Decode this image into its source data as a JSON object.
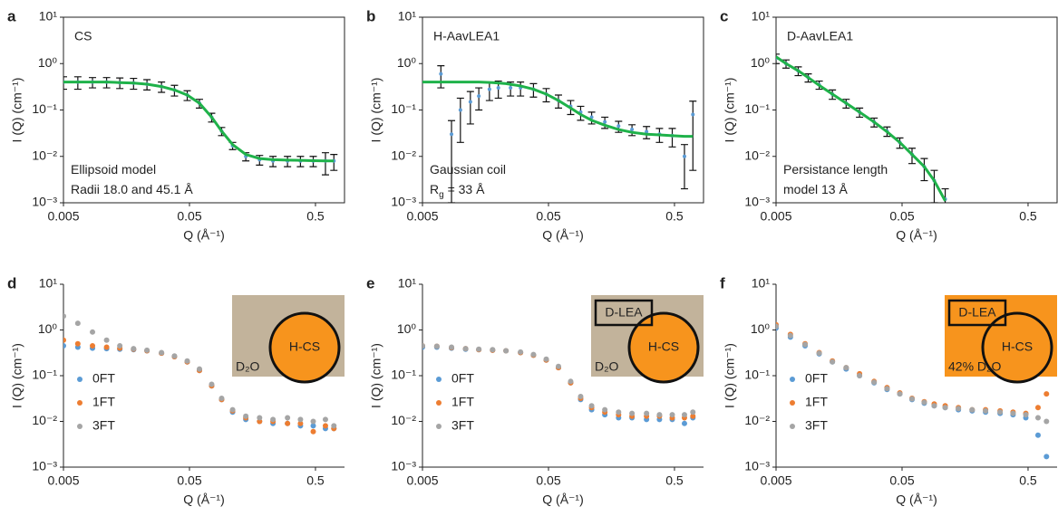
{
  "chart_data": [
    {
      "type": "scatter",
      "panel": "a",
      "title": "CS",
      "annotations": [
        {
          "text": "Ellipsoid model"
        },
        {
          "text": "Radii 18.0 and 45.1 Å"
        }
      ],
      "xlabel": "Q (Å⁻¹)",
      "ylabel": "I (Q)  (cm⁻¹)",
      "xscale": "log",
      "yscale": "log",
      "frame": true,
      "xlim": [
        0.005,
        0.85
      ],
      "ylim": [
        0.001,
        10
      ],
      "xticks": [
        0.005,
        0.05,
        0.5
      ],
      "yticks": [
        {
          "value": 0.001,
          "label": "10⁻³"
        },
        {
          "value": 0.01,
          "label": "10⁻²"
        },
        {
          "value": 0.1,
          "label": "10⁻¹"
        },
        {
          "value": 1,
          "label": "10⁰"
        },
        {
          "value": 10,
          "label": "10¹"
        }
      ],
      "x": [
        0.005,
        0.0065,
        0.0085,
        0.011,
        0.014,
        0.018,
        0.023,
        0.03,
        0.038,
        0.048,
        0.06,
        0.075,
        0.09,
        0.11,
        0.14,
        0.18,
        0.23,
        0.3,
        0.38,
        0.48,
        0.6,
        0.7
      ],
      "series": [
        {
          "style": "points",
          "color": "#5b9bd5",
          "values": [
            0.4,
            0.4,
            0.4,
            0.4,
            0.39,
            0.38,
            0.36,
            0.32,
            0.27,
            0.21,
            0.14,
            0.07,
            0.035,
            0.017,
            0.01,
            0.0085,
            0.008,
            0.008,
            0.008,
            0.008,
            0.008,
            0.008
          ],
          "errors": [
            0.12,
            0.12,
            0.1,
            0.1,
            0.1,
            0.1,
            0.09,
            0.08,
            0.07,
            0.05,
            0.03,
            0.015,
            0.007,
            0.003,
            0.002,
            0.002,
            0.002,
            0.002,
            0.002,
            0.002,
            0.004,
            0.003
          ]
        },
        {
          "style": "line",
          "color": "#1fb24a",
          "values": [
            0.4,
            0.4,
            0.4,
            0.4,
            0.39,
            0.38,
            0.36,
            0.32,
            0.27,
            0.21,
            0.14,
            0.07,
            0.035,
            0.018,
            0.011,
            0.009,
            0.0085,
            0.0083,
            0.0082,
            0.0081,
            0.008,
            0.008
          ]
        }
      ]
    },
    {
      "type": "scatter",
      "panel": "b",
      "title": "H-AavLEA1",
      "annotations": [
        {
          "text": "Gaussian coil"
        },
        {
          "text": "R",
          "sub": "g",
          "after": " = 33 Å"
        }
      ],
      "xlabel": "Q (Å⁻¹)",
      "ylabel": "I (Q)  (cm⁻¹)",
      "xscale": "log",
      "yscale": "log",
      "frame": true,
      "xlim": [
        0.005,
        0.85
      ],
      "ylim": [
        0.001,
        10
      ],
      "xticks": [
        0.005,
        0.05,
        0.5
      ],
      "yticks": [
        {
          "value": 0.001,
          "label": "10⁻³"
        },
        {
          "value": 0.01,
          "label": "10⁻²"
        },
        {
          "value": 0.1,
          "label": "10⁻¹"
        },
        {
          "value": 1,
          "label": "10⁰"
        },
        {
          "value": 10,
          "label": "10¹"
        }
      ],
      "x": [
        0.005,
        0.0065,
        0.0085,
        0.011,
        0.014,
        0.018,
        0.023,
        0.03,
        0.038,
        0.048,
        0.06,
        0.075,
        0.09,
        0.11,
        0.14,
        0.18,
        0.23,
        0.3,
        0.38,
        0.48,
        0.6,
        0.7
      ],
      "series": [
        {
          "style": "points",
          "color": "#5b9bd5",
          "x": [
            0.007,
            0.0085,
            0.01,
            0.012,
            0.014,
            0.017,
            0.02,
            0.025,
            0.03,
            0.038,
            0.048,
            0.06,
            0.075,
            0.09,
            0.11,
            0.14,
            0.18,
            0.23,
            0.3,
            0.38,
            0.48,
            0.6,
            0.7
          ],
          "values": [
            0.6,
            0.03,
            0.1,
            0.15,
            0.2,
            0.28,
            0.3,
            0.3,
            0.3,
            0.28,
            0.22,
            0.16,
            0.12,
            0.09,
            0.07,
            0.055,
            0.045,
            0.038,
            0.034,
            0.03,
            0.028,
            0.01,
            0.08
          ],
          "errors": [
            0.3,
            0.029,
            0.08,
            0.1,
            0.1,
            0.12,
            0.12,
            0.1,
            0.1,
            0.09,
            0.07,
            0.05,
            0.04,
            0.03,
            0.02,
            0.015,
            0.012,
            0.01,
            0.01,
            0.01,
            0.012,
            0.008,
            0.075
          ]
        },
        {
          "style": "line",
          "color": "#1fb24a",
          "values": [
            0.4,
            0.4,
            0.4,
            0.4,
            0.4,
            0.39,
            0.37,
            0.33,
            0.28,
            0.22,
            0.16,
            0.11,
            0.08,
            0.06,
            0.047,
            0.038,
            0.033,
            0.03,
            0.029,
            0.028,
            0.027,
            0.027
          ]
        }
      ]
    },
    {
      "type": "scatter",
      "panel": "c",
      "title": "D-AavLEA1",
      "annotations": [
        {
          "text": "Persistance length"
        },
        {
          "text": "model 13 Å"
        }
      ],
      "xlabel": "Q (Å⁻¹)",
      "ylabel": "I (Q)  (cm⁻¹)",
      "xscale": "log",
      "yscale": "log",
      "frame": true,
      "xlim": [
        0.005,
        0.85
      ],
      "ylim": [
        0.001,
        10
      ],
      "xticks": [
        0.005,
        0.05,
        0.5
      ],
      "yticks": [
        {
          "value": 0.001,
          "label": "10⁻³"
        },
        {
          "value": 0.01,
          "label": "10⁻²"
        },
        {
          "value": 0.1,
          "label": "10⁻¹"
        },
        {
          "value": 1,
          "label": "10⁰"
        },
        {
          "value": 10,
          "label": "10¹"
        }
      ],
      "x": [
        0.005,
        0.006,
        0.0075,
        0.009,
        0.011,
        0.014,
        0.018,
        0.023,
        0.03,
        0.038,
        0.048,
        0.06,
        0.075,
        0.09,
        0.11
      ],
      "series": [
        {
          "style": "points",
          "color": "#5b9bd5",
          "values": [
            1.3,
            1.0,
            0.7,
            0.5,
            0.35,
            0.22,
            0.14,
            0.09,
            0.055,
            0.035,
            0.02,
            0.011,
            0.006,
            0.003,
            0.0012
          ],
          "errors": [
            0.3,
            0.2,
            0.15,
            0.1,
            0.07,
            0.05,
            0.03,
            0.02,
            0.012,
            0.008,
            0.005,
            0.004,
            0.003,
            0.002,
            0.0008
          ]
        },
        {
          "style": "line",
          "color": "#1fb24a",
          "values": [
            1.4,
            1.0,
            0.7,
            0.5,
            0.34,
            0.22,
            0.14,
            0.09,
            0.055,
            0.034,
            0.02,
            0.011,
            0.006,
            0.003,
            0.0011
          ]
        }
      ]
    },
    {
      "type": "scatter",
      "panel": "d",
      "legend": "center left",
      "inset": {
        "background": "#c2b39b",
        "circle_fill": "#f7941d",
        "circle_label": "H-CS",
        "solvent": "D₂O"
      },
      "xlabel": "Q (Å⁻¹)",
      "ylabel": "I (Q)  (cm⁻¹)",
      "xscale": "log",
      "yscale": "log",
      "frame": false,
      "xlim": [
        0.005,
        0.85
      ],
      "ylim": [
        0.001,
        10
      ],
      "xticks": [
        0.005,
        0.05,
        0.5
      ],
      "yticks": [
        {
          "value": 0.001,
          "label": "10⁻³"
        },
        {
          "value": 0.01,
          "label": "10⁻²"
        },
        {
          "value": 0.1,
          "label": "10⁻¹"
        },
        {
          "value": 1,
          "label": "10⁰"
        },
        {
          "value": 10,
          "label": "10¹"
        }
      ],
      "x": [
        0.005,
        0.0065,
        0.0085,
        0.011,
        0.014,
        0.018,
        0.023,
        0.03,
        0.038,
        0.048,
        0.06,
        0.075,
        0.09,
        0.11,
        0.14,
        0.18,
        0.23,
        0.3,
        0.38,
        0.48,
        0.6,
        0.7
      ],
      "series": [
        {
          "name": "0FT",
          "style": "points",
          "color": "#5b9bd5",
          "values": [
            0.45,
            0.42,
            0.4,
            0.39,
            0.38,
            0.37,
            0.35,
            0.31,
            0.26,
            0.2,
            0.13,
            0.06,
            0.03,
            0.016,
            0.011,
            0.01,
            0.009,
            0.009,
            0.008,
            0.008,
            0.007,
            0.007
          ]
        },
        {
          "name": "1FT",
          "style": "points",
          "color": "#ed7d31",
          "values": [
            0.6,
            0.5,
            0.45,
            0.42,
            0.4,
            0.38,
            0.35,
            0.31,
            0.26,
            0.2,
            0.13,
            0.06,
            0.03,
            0.017,
            0.012,
            0.01,
            0.01,
            0.009,
            0.009,
            0.006,
            0.008,
            0.007
          ]
        },
        {
          "name": "3FT",
          "style": "points",
          "color": "#a5a5a5",
          "values": [
            2.0,
            1.4,
            0.9,
            0.6,
            0.45,
            0.39,
            0.36,
            0.32,
            0.27,
            0.21,
            0.14,
            0.065,
            0.032,
            0.018,
            0.013,
            0.012,
            0.011,
            0.012,
            0.011,
            0.01,
            0.011,
            0.008
          ]
        }
      ]
    },
    {
      "type": "scatter",
      "panel": "e",
      "legend": "center left",
      "inset": {
        "background": "#c2b39b",
        "circle_fill": "#f7941d",
        "circle_label": "H-CS",
        "solvent": "D₂O",
        "box_label": "D-LEA"
      },
      "xlabel": "Q (Å⁻¹)",
      "ylabel": "I (Q)  (cm⁻¹)",
      "xscale": "log",
      "yscale": "log",
      "frame": false,
      "xlim": [
        0.005,
        0.85
      ],
      "ylim": [
        0.001,
        10
      ],
      "xticks": [
        0.005,
        0.05,
        0.5
      ],
      "yticks": [
        {
          "value": 0.001,
          "label": "10⁻³"
        },
        {
          "value": 0.01,
          "label": "10⁻²"
        },
        {
          "value": 0.1,
          "label": "10⁻¹"
        },
        {
          "value": 1,
          "label": "10⁰"
        },
        {
          "value": 10,
          "label": "10¹"
        }
      ],
      "x": [
        0.005,
        0.0065,
        0.0085,
        0.011,
        0.014,
        0.018,
        0.023,
        0.03,
        0.038,
        0.048,
        0.06,
        0.075,
        0.09,
        0.11,
        0.14,
        0.18,
        0.23,
        0.3,
        0.38,
        0.48,
        0.6,
        0.7
      ],
      "series": [
        {
          "name": "0FT",
          "style": "points",
          "color": "#5b9bd5",
          "values": [
            0.42,
            0.42,
            0.4,
            0.38,
            0.37,
            0.36,
            0.35,
            0.32,
            0.28,
            0.22,
            0.15,
            0.07,
            0.03,
            0.018,
            0.014,
            0.012,
            0.012,
            0.011,
            0.011,
            0.011,
            0.009,
            0.012
          ]
        },
        {
          "name": "1FT",
          "style": "points",
          "color": "#ed7d31",
          "values": [
            0.45,
            0.44,
            0.41,
            0.39,
            0.37,
            0.36,
            0.35,
            0.32,
            0.28,
            0.22,
            0.15,
            0.07,
            0.032,
            0.02,
            0.016,
            0.014,
            0.013,
            0.013,
            0.013,
            0.012,
            0.012,
            0.013
          ]
        },
        {
          "name": "3FT",
          "style": "points",
          "color": "#a5a5a5",
          "values": [
            0.45,
            0.44,
            0.42,
            0.39,
            0.38,
            0.37,
            0.35,
            0.33,
            0.29,
            0.23,
            0.16,
            0.075,
            0.035,
            0.022,
            0.018,
            0.016,
            0.015,
            0.015,
            0.014,
            0.014,
            0.014,
            0.016
          ]
        }
      ]
    },
    {
      "type": "scatter",
      "panel": "f",
      "legend": "center left",
      "inset": {
        "background": "#f7941d",
        "circle_fill": "#f7941d",
        "circle_label": "H-CS",
        "solvent": "42% D₂O",
        "box_label": "D-LEA"
      },
      "xlabel": "Q (Å⁻¹)",
      "ylabel": "I (Q)  (cm⁻¹)",
      "xscale": "log",
      "yscale": "log",
      "frame": false,
      "xlim": [
        0.005,
        0.85
      ],
      "ylim": [
        0.001,
        10
      ],
      "xticks": [
        0.005,
        0.05,
        0.5
      ],
      "yticks": [
        {
          "value": 0.001,
          "label": "10⁻³"
        },
        {
          "value": 0.01,
          "label": "10⁻²"
        },
        {
          "value": 0.1,
          "label": "10⁻¹"
        },
        {
          "value": 1,
          "label": "10⁰"
        },
        {
          "value": 10,
          "label": "10¹"
        }
      ],
      "x": [
        0.005,
        0.0065,
        0.0085,
        0.011,
        0.014,
        0.018,
        0.023,
        0.03,
        0.038,
        0.048,
        0.06,
        0.075,
        0.09,
        0.11,
        0.14,
        0.18,
        0.23,
        0.3,
        0.38,
        0.48,
        0.6,
        0.7
      ],
      "series": [
        {
          "name": "0FT",
          "style": "points",
          "color": "#5b9bd5",
          "values": [
            1.1,
            0.7,
            0.45,
            0.3,
            0.2,
            0.14,
            0.1,
            0.07,
            0.05,
            0.04,
            0.03,
            0.025,
            0.022,
            0.02,
            0.018,
            0.017,
            0.016,
            0.015,
            0.014,
            0.012,
            0.005,
            0.0017
          ]
        },
        {
          "name": "1FT",
          "style": "points",
          "color": "#ed7d31",
          "values": [
            1.3,
            0.8,
            0.5,
            0.32,
            0.21,
            0.15,
            0.11,
            0.075,
            0.055,
            0.042,
            0.032,
            0.027,
            0.024,
            0.022,
            0.02,
            0.018,
            0.018,
            0.017,
            0.016,
            0.015,
            0.02,
            0.04
          ]
        },
        {
          "name": "3FT",
          "style": "points",
          "color": "#a5a5a5",
          "values": [
            1.2,
            0.75,
            0.48,
            0.31,
            0.2,
            0.15,
            0.1,
            0.072,
            0.052,
            0.04,
            0.031,
            0.026,
            0.022,
            0.02,
            0.019,
            0.018,
            0.017,
            0.016,
            0.015,
            0.014,
            0.012,
            0.01
          ]
        }
      ]
    }
  ]
}
